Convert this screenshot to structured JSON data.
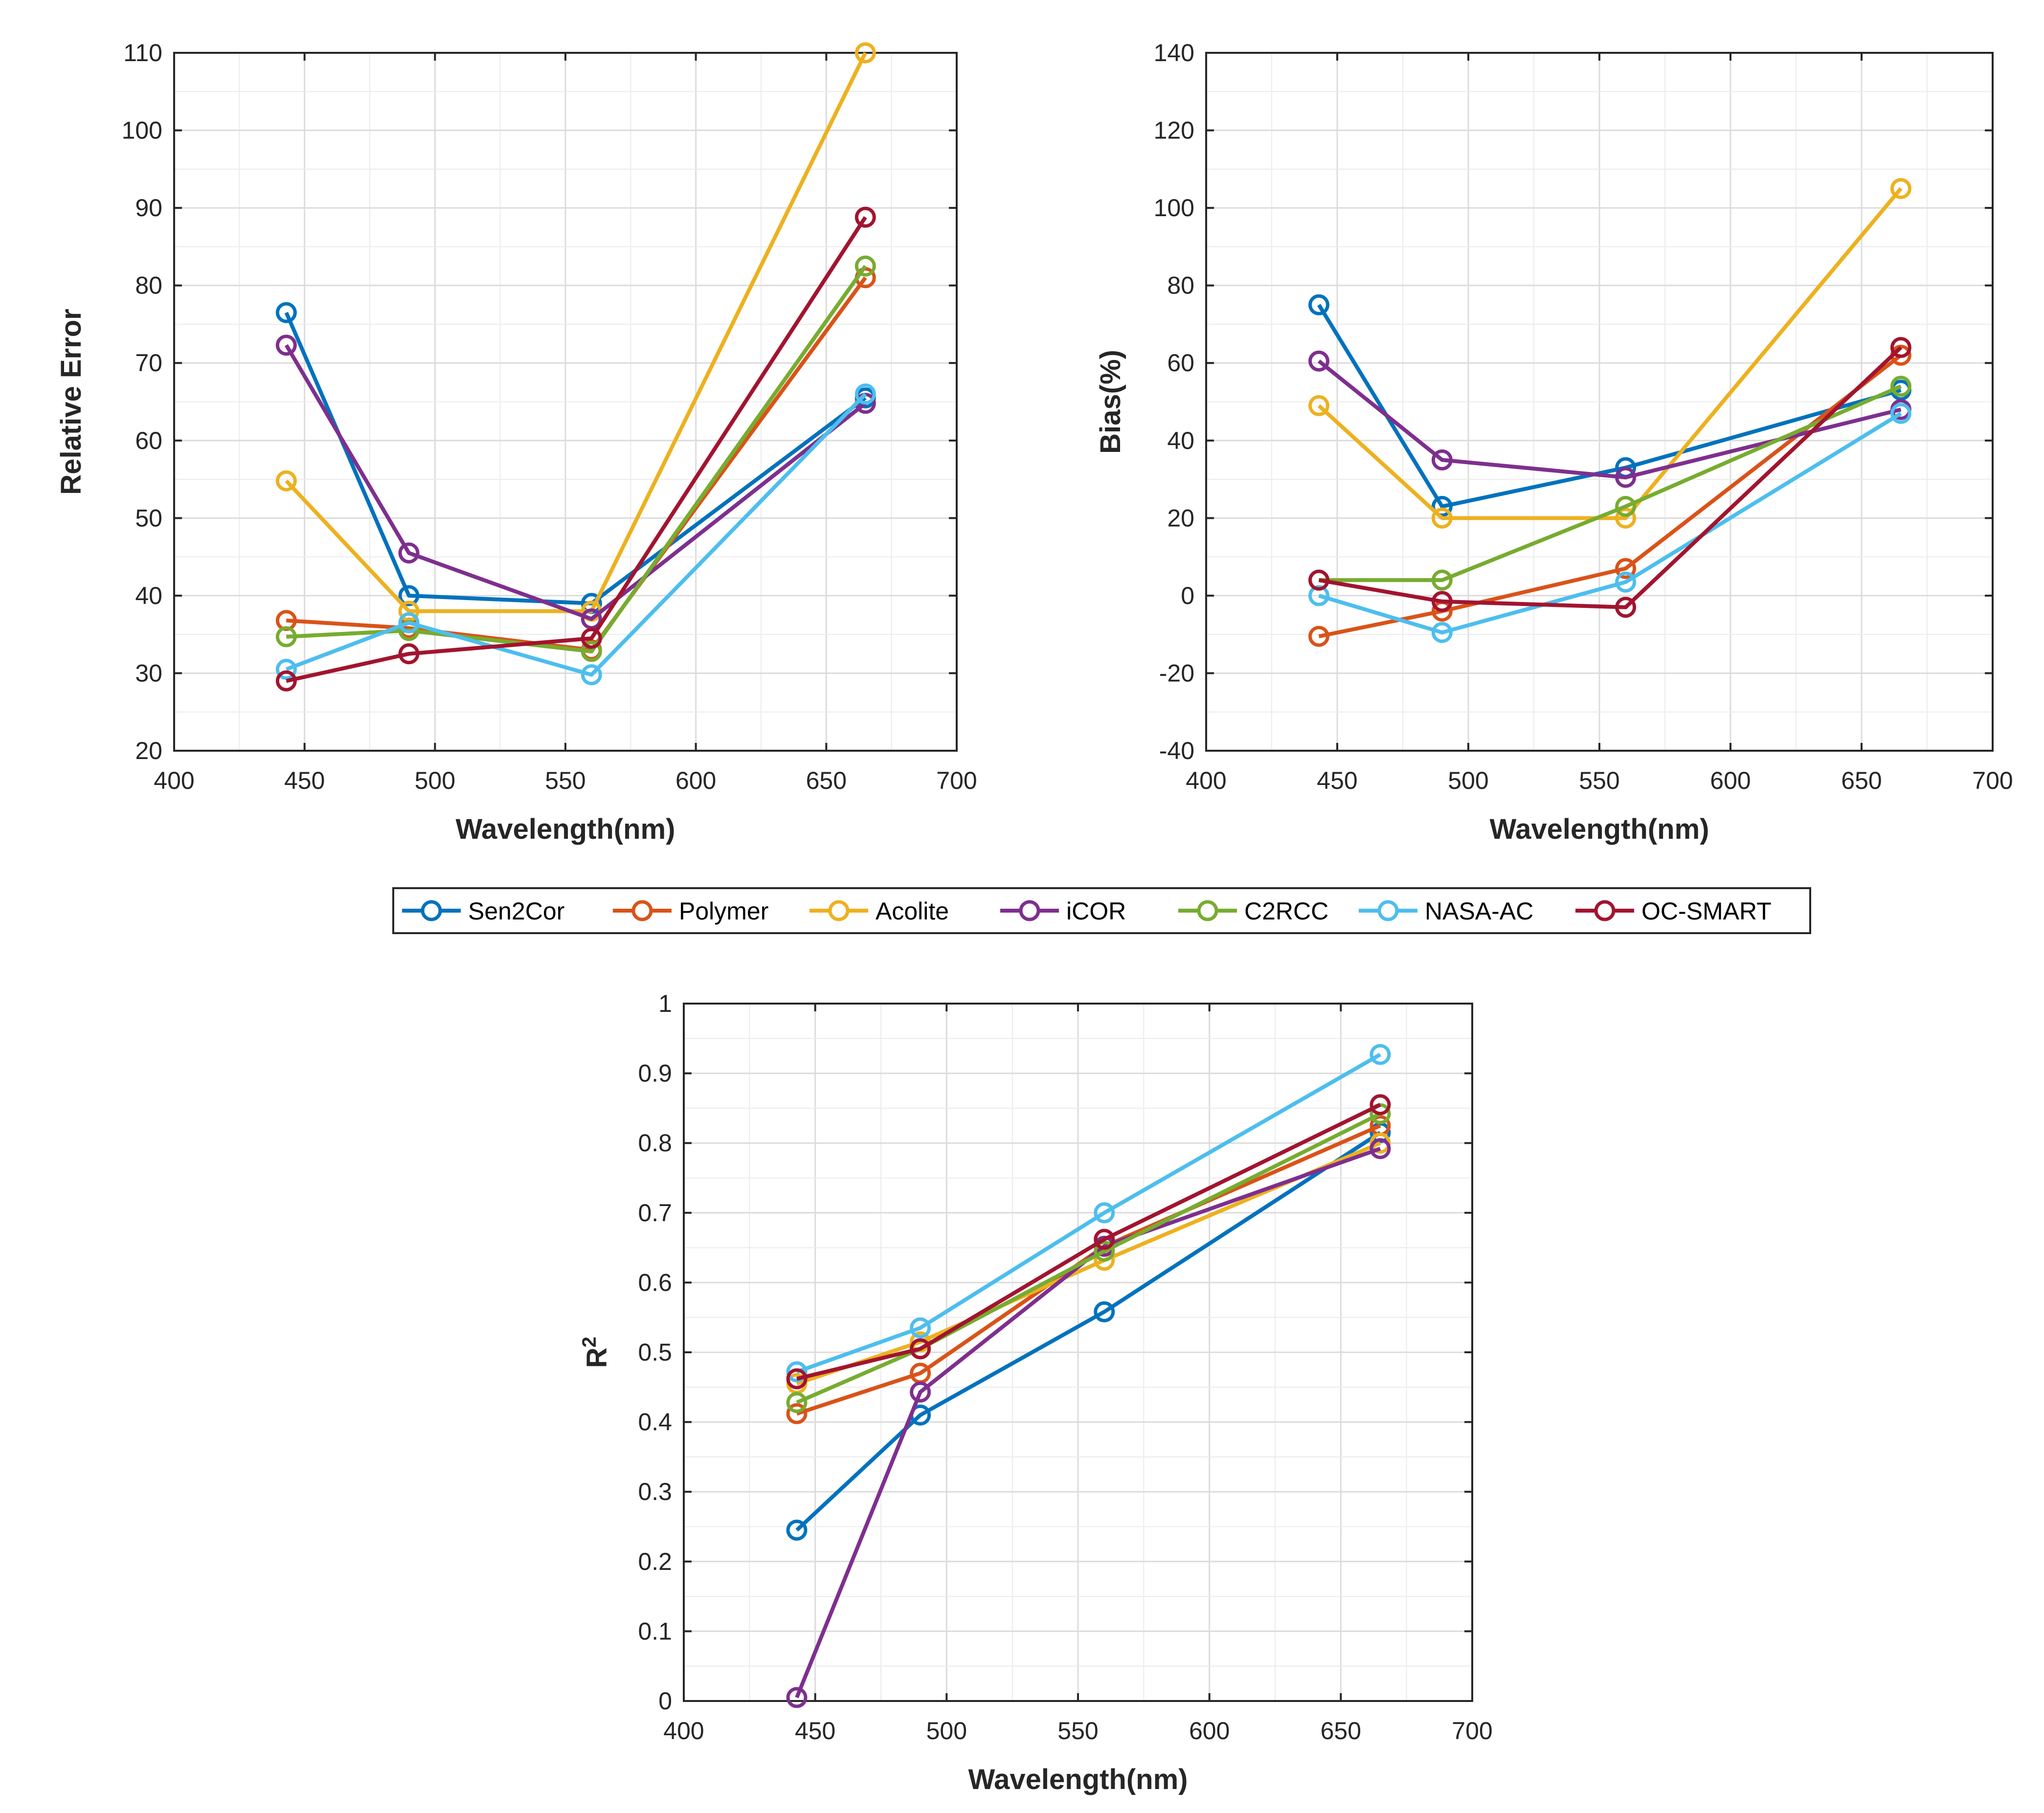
{
  "chart_data": [
    {
      "type": "line",
      "id": "relative-error",
      "xlabel": "Wavelength(nm)",
      "ylabel": "Relative Error",
      "xlim": [
        400,
        700
      ],
      "ylim": [
        20,
        110
      ],
      "xticks": [
        400,
        450,
        500,
        550,
        600,
        650,
        700
      ],
      "yticks": [
        20,
        30,
        40,
        50,
        60,
        70,
        80,
        90,
        100,
        110
      ],
      "grid": true,
      "x": [
        443,
        490,
        560,
        665
      ],
      "series": [
        {
          "name": "Sen2Cor",
          "values": [
            76.5,
            40.0,
            39.0,
            65.5
          ]
        },
        {
          "name": "Polymer",
          "values": [
            36.8,
            35.8,
            33.0,
            81.0
          ]
        },
        {
          "name": "Acolite",
          "values": [
            54.8,
            38.0,
            38.0,
            110.0
          ]
        },
        {
          "name": "iCOR",
          "values": [
            72.3,
            45.5,
            37.0,
            64.8
          ]
        },
        {
          "name": "C2RCC",
          "values": [
            34.7,
            35.5,
            32.8,
            82.5
          ]
        },
        {
          "name": "NASA-AC",
          "values": [
            30.5,
            36.5,
            29.8,
            66.0
          ]
        },
        {
          "name": "OC-SMART",
          "values": [
            29.0,
            32.5,
            34.5,
            88.8
          ]
        }
      ]
    },
    {
      "type": "line",
      "id": "bias",
      "xlabel": "Wavelength(nm)",
      "ylabel": "Bias(%)",
      "xlim": [
        400,
        700
      ],
      "ylim": [
        -40,
        140
      ],
      "xticks": [
        400,
        450,
        500,
        550,
        600,
        650,
        700
      ],
      "yticks": [
        -40,
        -20,
        0,
        20,
        40,
        60,
        80,
        100,
        120,
        140
      ],
      "grid": true,
      "x": [
        443,
        490,
        560,
        665
      ],
      "series": [
        {
          "name": "Sen2Cor",
          "values": [
            75.0,
            23.0,
            33.0,
            53.0
          ]
        },
        {
          "name": "Polymer",
          "values": [
            -10.5,
            -4.0,
            7.0,
            62.0
          ]
        },
        {
          "name": "Acolite",
          "values": [
            49.0,
            20.0,
            20.0,
            105.0
          ]
        },
        {
          "name": "iCOR",
          "values": [
            60.5,
            35.0,
            30.5,
            48.0
          ]
        },
        {
          "name": "C2RCC",
          "values": [
            4.0,
            4.0,
            23.0,
            54.0
          ]
        },
        {
          "name": "NASA-AC",
          "values": [
            0.0,
            -9.5,
            3.5,
            47.0
          ]
        },
        {
          "name": "OC-SMART",
          "values": [
            4.0,
            -1.5,
            -3.0,
            64.0
          ]
        }
      ]
    },
    {
      "type": "line",
      "id": "r-squared",
      "xlabel": "Wavelength(nm)",
      "ylabel": "R",
      "ylabel_superscript": "2",
      "xlim": [
        400,
        700
      ],
      "ylim": [
        0,
        1
      ],
      "xticks": [
        400,
        450,
        500,
        550,
        600,
        650,
        700
      ],
      "yticks": [
        0,
        0.1,
        0.2,
        0.3,
        0.4,
        0.5,
        0.6,
        0.7,
        0.8,
        0.9,
        1
      ],
      "grid": true,
      "x": [
        443,
        490,
        560,
        665
      ],
      "series": [
        {
          "name": "Sen2Cor",
          "values": [
            0.245,
            0.41,
            0.558,
            0.815
          ]
        },
        {
          "name": "Polymer",
          "values": [
            0.412,
            0.47,
            0.652,
            0.825
          ]
        },
        {
          "name": "Acolite",
          "values": [
            0.455,
            0.515,
            0.632,
            0.8
          ]
        },
        {
          "name": "iCOR",
          "values": [
            0.005,
            0.443,
            0.652,
            0.792
          ]
        },
        {
          "name": "C2RCC",
          "values": [
            0.428,
            0.505,
            0.645,
            0.842
          ]
        },
        {
          "name": "NASA-AC",
          "values": [
            0.472,
            0.535,
            0.7,
            0.927
          ]
        },
        {
          "name": "OC-SMART",
          "values": [
            0.462,
            0.505,
            0.662,
            0.855
          ]
        }
      ]
    }
  ],
  "legend": [
    {
      "name": "Sen2Cor",
      "color": "#0072BD"
    },
    {
      "name": "Polymer",
      "color": "#D95319"
    },
    {
      "name": "Acolite",
      "color": "#EDB120"
    },
    {
      "name": "iCOR",
      "color": "#7E2F8E"
    },
    {
      "name": "C2RCC",
      "color": "#77AC30"
    },
    {
      "name": "NASA-AC",
      "color": "#4DBEEE"
    },
    {
      "name": "OC-SMART",
      "color": "#A2142F"
    }
  ]
}
